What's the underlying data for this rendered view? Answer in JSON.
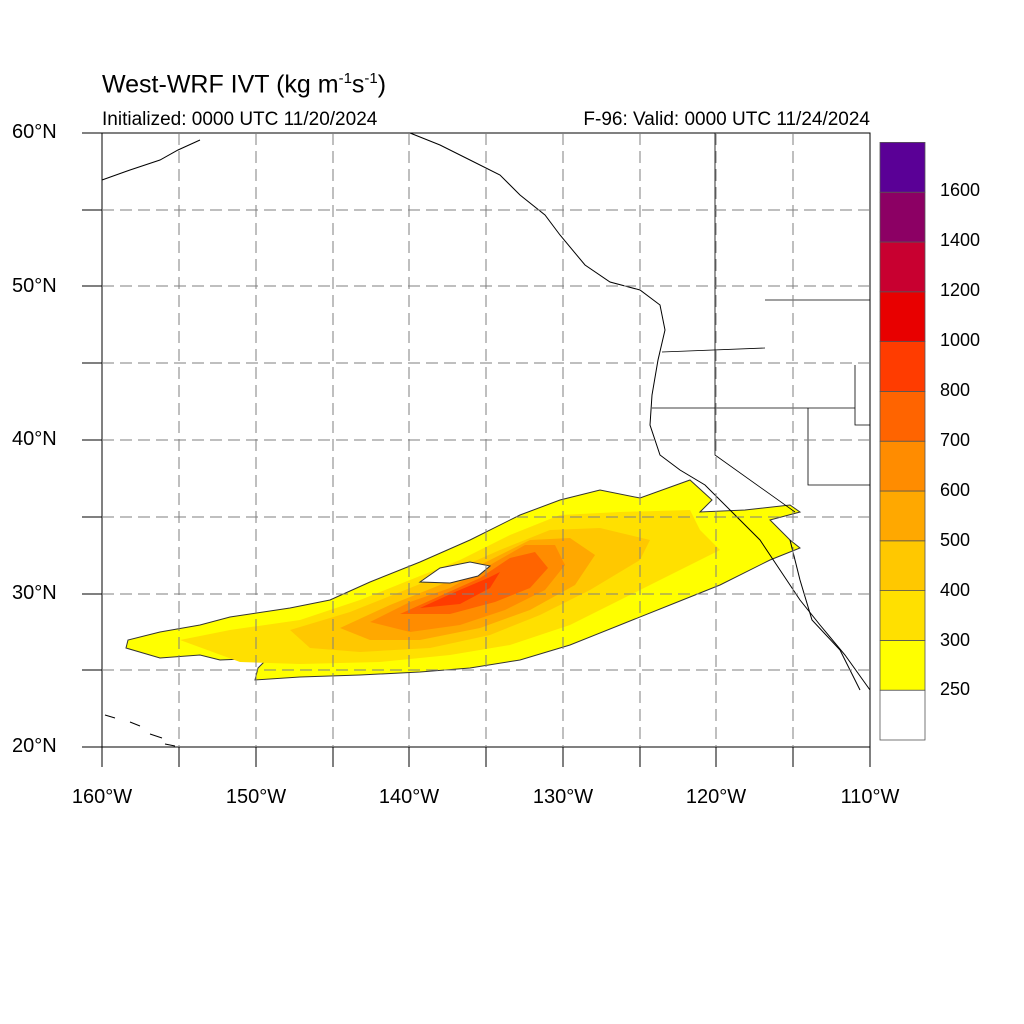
{
  "title": {
    "main": "West-WRF IVT (kg m",
    "sup1": "-1",
    "mid": "s",
    "sup2": "-1",
    "end": ")"
  },
  "initialized": "Initialized: 0000 UTC 11/20/2024",
  "valid": "F-96: Valid: 0000 UTC 11/24/2024",
  "lat_labels": [
    "60°N",
    "50°N",
    "40°N",
    "30°N",
    "20°N"
  ],
  "lon_labels": [
    "160°W",
    "150°W",
    "140°W",
    "130°W",
    "120°W",
    "110°W"
  ],
  "colorbar": {
    "labels": [
      "250",
      "300",
      "400",
      "500",
      "600",
      "700",
      "800",
      "1000",
      "1200",
      "1400",
      "1600"
    ],
    "colors": [
      "#ffffff",
      "#ffff00",
      "#ffe000",
      "#ffc800",
      "#ffa800",
      "#ff8c00",
      "#ff6400",
      "#ff3c00",
      "#e80000",
      "#c80030",
      "#8c0064",
      "#5a0096"
    ]
  },
  "chart_data": {
    "type": "heatmap",
    "map_extent": {
      "lon": [
        -160,
        -110
      ],
      "lat": [
        20,
        60
      ]
    },
    "variable": "IVT",
    "units": "kg m-1 s-1",
    "levels": [
      250,
      300,
      400,
      500,
      600,
      700,
      800,
      1000,
      1200,
      1400,
      1600
    ],
    "features": [
      {
        "name": "atmospheric river",
        "max_ivt_approx": 1000,
        "core_lon": -135,
        "core_lat": 31
      }
    ]
  }
}
